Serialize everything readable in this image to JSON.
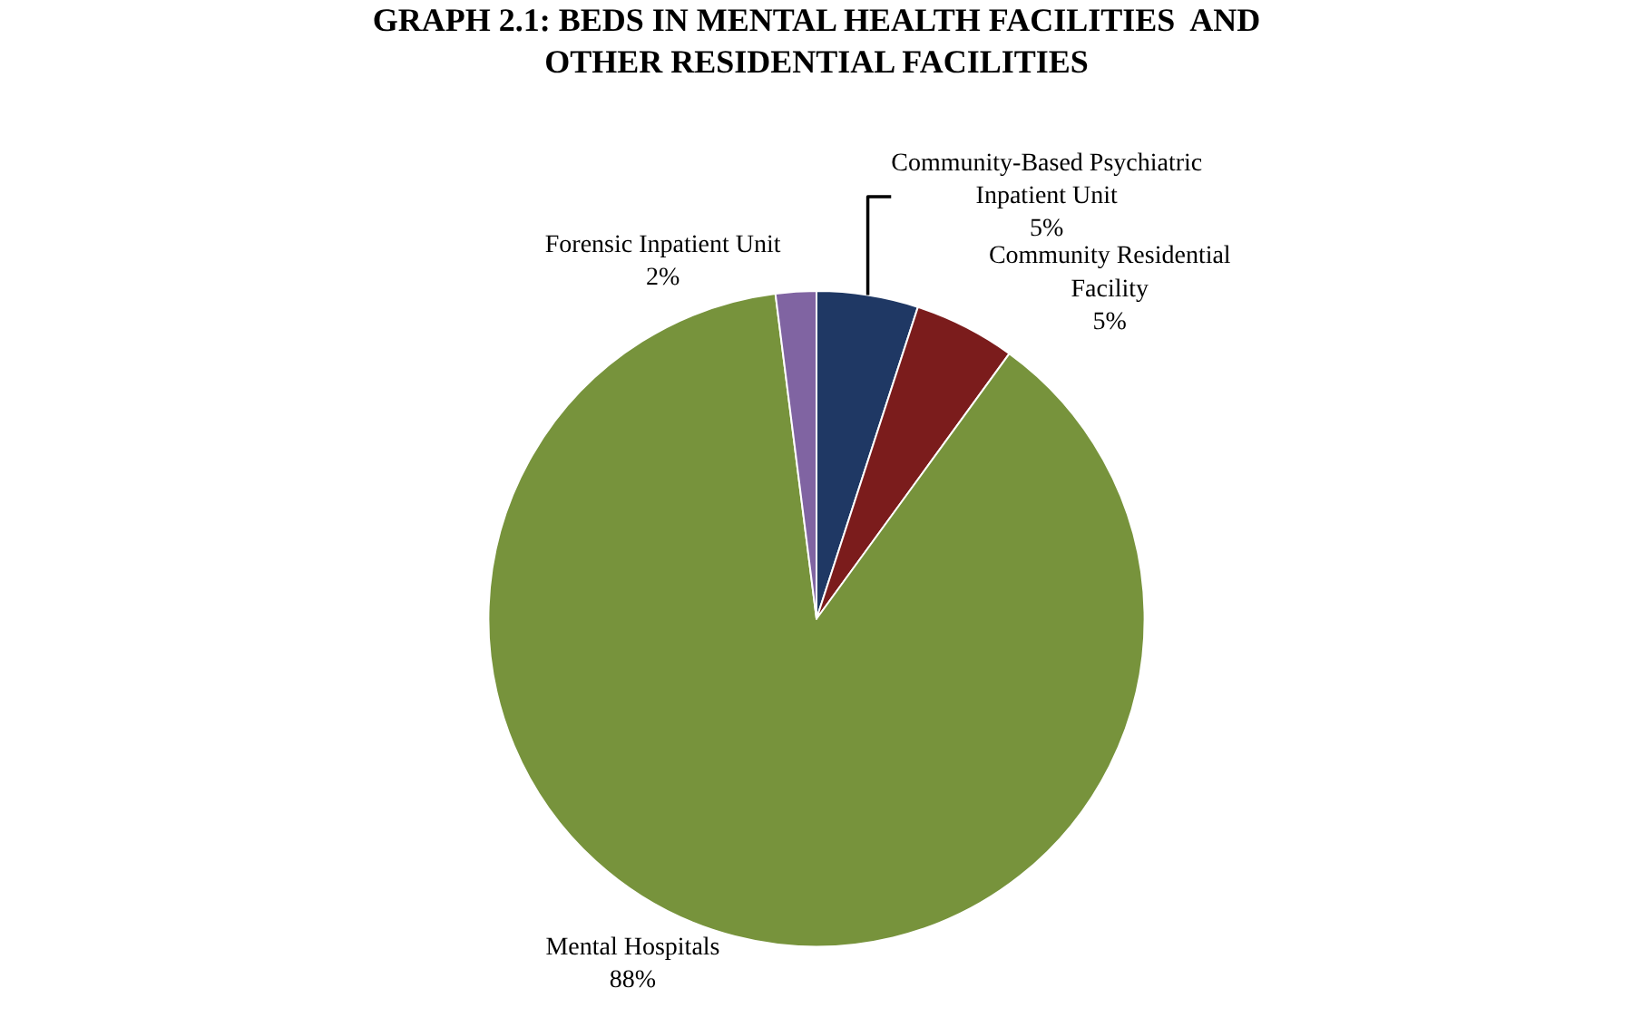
{
  "chart_data": {
    "type": "pie",
    "title": "GRAPH 2.1: BEDS IN MENTAL HEALTH FACILITIES  AND OTHER RESIDENTIAL FACILITIES",
    "categories": [
      "Community-Based Psychiatric Inpatient Unit",
      "Community Residential Facility",
      "Mental Hospitals",
      "Forensic Inpatient Unit"
    ],
    "values": [
      5,
      5,
      88,
      2
    ],
    "value_labels": [
      "5%",
      "5%",
      "88%",
      "2%"
    ],
    "colors": [
      "#1f3864",
      "#7b1c1c",
      "#77933c",
      "#8064a2"
    ],
    "legend": false
  }
}
